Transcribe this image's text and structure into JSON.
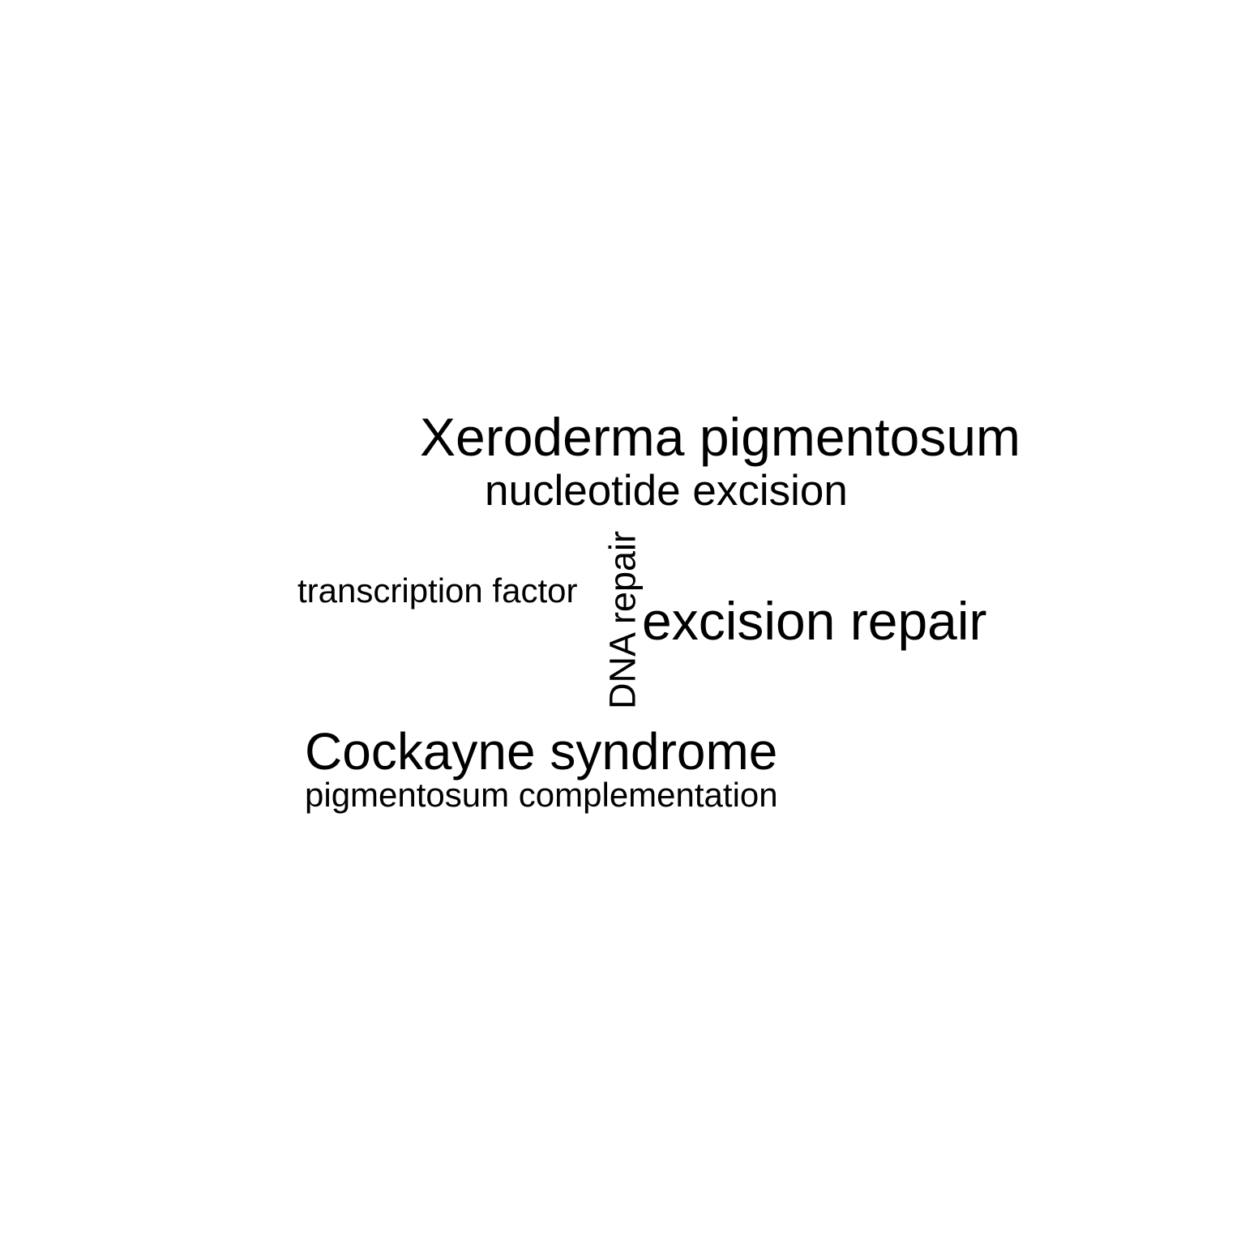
{
  "word_cloud": {
    "words": [
      {
        "text": "Xeroderma pigmentosum"
      },
      {
        "text": "nucleotide excision"
      },
      {
        "text": "DNA repair",
        "orientation": "vertical"
      },
      {
        "text": "transcription factor"
      },
      {
        "text": "excision repair"
      },
      {
        "text": "Cockayne syndrome"
      },
      {
        "text": "pigmentosum complementation"
      }
    ],
    "color": "#000000",
    "background": "#ffffff"
  }
}
